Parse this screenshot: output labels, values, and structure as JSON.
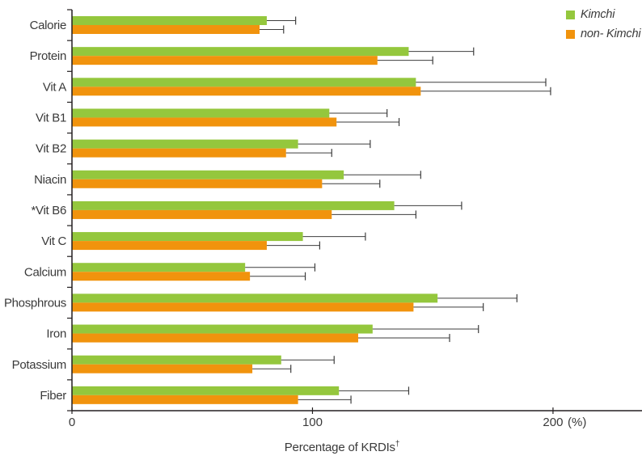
{
  "figure": {
    "background": "#ffffff"
  },
  "chart_data": {
    "type": "bar",
    "orientation": "horizontal",
    "title": "",
    "xlabel": "Percentage of KRDIs",
    "xlabel_sup": "†",
    "x_unit": "(%)",
    "xlim": [
      0,
      237
    ],
    "x_ticks": [
      0,
      100,
      200
    ],
    "grid": false,
    "legend_position": "top-right",
    "categories": [
      "Calorie",
      "Protein",
      "Vit A",
      "Vit B1",
      "Vit B2",
      "Niacin",
      "*Vit B6",
      "Vit C",
      "Calcium",
      "Phosphrous",
      "Iron",
      "Potassium",
      "Fiber"
    ],
    "series": [
      {
        "name": "Kimchi",
        "color": "#94C73D",
        "values": [
          81,
          140,
          143,
          107,
          94,
          113,
          134,
          96,
          72,
          152,
          125,
          87,
          111
        ],
        "error_upper": [
          93,
          167,
          197,
          131,
          124,
          145,
          162,
          122,
          101,
          185,
          169,
          109,
          140
        ]
      },
      {
        "name": "non- Kimchi",
        "color": "#F1930D",
        "values": [
          78,
          127,
          145,
          110,
          89,
          104,
          108,
          81,
          74,
          142,
          119,
          75,
          94
        ],
        "error_upper": [
          88,
          150,
          199,
          136,
          108,
          128,
          143,
          103,
          97,
          171,
          157,
          91,
          116
        ]
      }
    ],
    "error_bar_color": "#3e3e3e",
    "axis_color": "#231f20",
    "text_color": "#3a3a3a"
  }
}
